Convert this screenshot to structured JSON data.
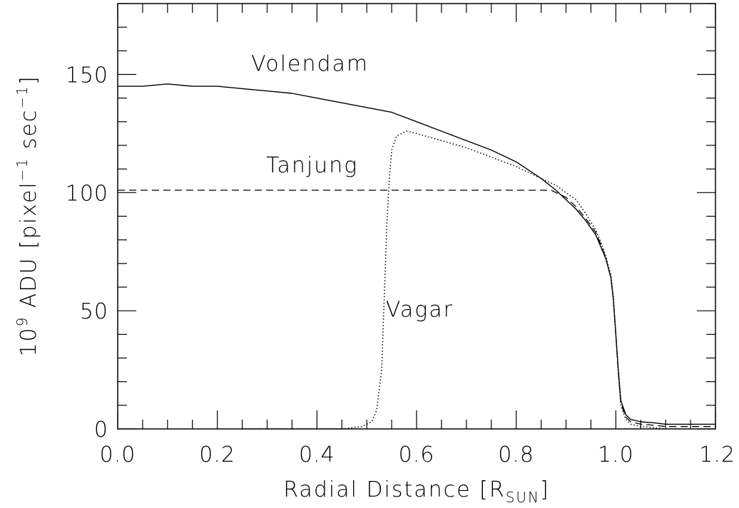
{
  "chart_data": {
    "type": "line",
    "title": "",
    "xlabel": {
      "main": "Radial Distance [R",
      "sub": "SUN",
      "close": "]"
    },
    "ylabel": {
      "base": "10",
      "exp": "9",
      "mid": " ADU [pixel",
      "exp2": "−1",
      "mid2": " sec",
      "exp3": "−1",
      "close": "]"
    },
    "xlim": [
      0.0,
      1.2
    ],
    "ylim": [
      0,
      180
    ],
    "x_ticks": [
      "0.0",
      "0.2",
      "0.4",
      "0.6",
      "0.8",
      "1.0",
      "1.2"
    ],
    "y_ticks": [
      "0",
      "50",
      "100",
      "150"
    ],
    "grid": false,
    "series": [
      {
        "name": "Volendam",
        "style": "solid",
        "x": [
          0.0,
          0.05,
          0.1,
          0.15,
          0.2,
          0.25,
          0.3,
          0.35,
          0.4,
          0.45,
          0.5,
          0.55,
          0.6,
          0.65,
          0.7,
          0.75,
          0.8,
          0.85,
          0.88,
          0.9,
          0.92,
          0.94,
          0.96,
          0.97,
          0.98,
          0.99,
          0.995,
          1.0,
          1.005,
          1.01,
          1.02,
          1.03,
          1.05,
          1.08,
          1.1,
          1.15,
          1.2
        ],
        "y": [
          145,
          145,
          146,
          145,
          145,
          144,
          143,
          142,
          140,
          138,
          136,
          134,
          130,
          126,
          122,
          118,
          113,
          106,
          101,
          97,
          93,
          88,
          82,
          77,
          72,
          64,
          55,
          40,
          25,
          12,
          6,
          4,
          3,
          2.5,
          2,
          2,
          2
        ]
      },
      {
        "name": "Tanjung",
        "style": "dashed",
        "x": [
          0.0,
          0.1,
          0.2,
          0.3,
          0.4,
          0.5,
          0.6,
          0.7,
          0.8,
          0.85,
          0.87,
          0.9,
          0.92,
          0.94,
          0.96,
          0.97,
          0.98,
          0.99,
          0.995,
          1.0,
          1.005,
          1.01,
          1.02,
          1.03,
          1.05,
          1.08,
          1.1,
          1.15,
          1.2
        ],
        "y": [
          101,
          101,
          101,
          101,
          101,
          101,
          101,
          101,
          101,
          101,
          101,
          98,
          94,
          89,
          83,
          78,
          72,
          64,
          55,
          40,
          24,
          11,
          5,
          3,
          2,
          1.5,
          1,
          1,
          1
        ]
      },
      {
        "name": "Vagar",
        "style": "dotted",
        "x": [
          0.25,
          0.3,
          0.4,
          0.45,
          0.49,
          0.51,
          0.52,
          0.53,
          0.535,
          0.54,
          0.545,
          0.55,
          0.56,
          0.58,
          0.6,
          0.65,
          0.7,
          0.75,
          0.8,
          0.85,
          0.88,
          0.9,
          0.92,
          0.94,
          0.96,
          0.97,
          0.98,
          0.99,
          0.995,
          1.0,
          1.005,
          1.01,
          1.02,
          1.03,
          1.05,
          1.08,
          1.1
        ],
        "y": [
          0,
          0,
          0,
          0,
          1,
          3,
          8,
          25,
          55,
          85,
          105,
          118,
          124,
          126,
          125,
          122,
          119,
          115,
          111,
          106,
          103,
          100,
          97,
          91,
          84,
          79,
          73,
          65,
          56,
          40,
          24,
          10,
          4,
          2,
          1,
          0.5,
          0
        ]
      }
    ],
    "annotations": [
      {
        "text": "Volendam",
        "x": 0.268,
        "y": 151.5
      },
      {
        "text": "Tanjung",
        "x": 0.298,
        "y": 108.5
      },
      {
        "text": "Vagar",
        "x": 0.538,
        "y": 47.5
      }
    ]
  }
}
